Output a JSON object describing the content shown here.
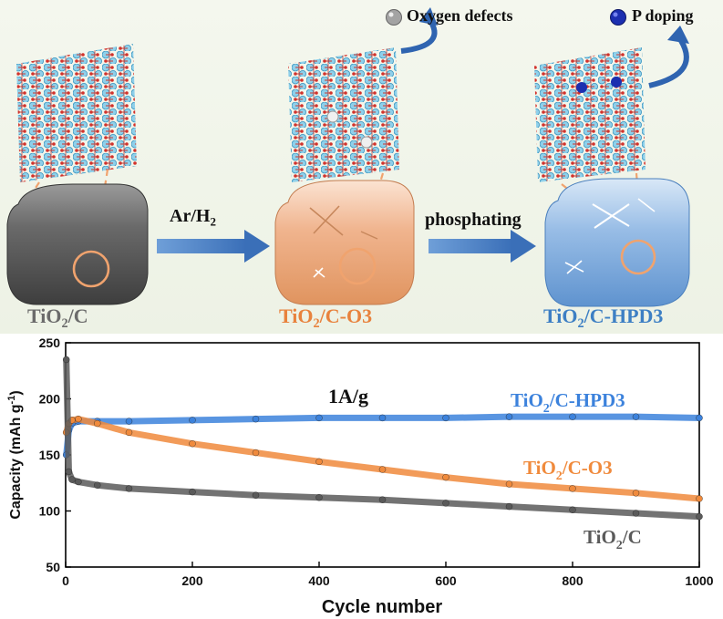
{
  "schematic": {
    "legend": [
      {
        "label": "Oxygen defects",
        "color": "#9a9a9a"
      },
      {
        "label": "P doping",
        "color": "#1c2fb0"
      }
    ],
    "materials": [
      {
        "name_main": "TiO",
        "name_sub": "2",
        "name_tail": "/C",
        "color": "#6b6b6b",
        "block_color": "#4a4a4a"
      },
      {
        "name_main": "TiO",
        "name_sub": "2",
        "name_tail": "/C-O3",
        "color": "#e8823d",
        "block_color": "#e9a27c"
      },
      {
        "name_main": "TiO",
        "name_sub": "2",
        "name_tail": "/C-HPD3",
        "color": "#3d7fc4",
        "block_color": "#6f9fd2"
      }
    ],
    "steps": [
      {
        "main": "Ar/H",
        "sub": "2"
      },
      {
        "main": "phosphating",
        "sub": ""
      }
    ]
  },
  "chart_data": {
    "type": "line",
    "xlabel": "Cycle number",
    "ylabel": "Capacity (mAh g",
    "ylabel_sup": "-1",
    "ylabel_tail": ")",
    "xlim": [
      0,
      1000
    ],
    "ylim": [
      50,
      250
    ],
    "xticks": [
      0,
      200,
      400,
      600,
      800,
      1000
    ],
    "yticks": [
      50,
      100,
      150,
      200,
      250
    ],
    "annotation": "1A/g",
    "series": [
      {
        "name": "TiO2/C-HPD3",
        "label_main": "TiO",
        "label_sub": "2",
        "label_tail": "/C-HPD3",
        "color": "#3c82dc",
        "x": [
          1,
          5,
          10,
          20,
          50,
          100,
          200,
          300,
          400,
          500,
          600,
          700,
          800,
          900,
          1000
        ],
        "y": [
          150,
          172,
          178,
          180,
          180,
          180,
          181,
          182,
          183,
          183,
          183,
          184,
          184,
          184,
          183
        ]
      },
      {
        "name": "TiO2/C-O3",
        "label_main": "TiO",
        "label_sub": "2",
        "label_tail": "/C-O3",
        "color": "#f08a3c",
        "x": [
          1,
          5,
          10,
          20,
          50,
          100,
          200,
          300,
          400,
          500,
          600,
          700,
          800,
          900,
          1000
        ],
        "y": [
          170,
          178,
          181,
          182,
          178,
          170,
          160,
          152,
          144,
          137,
          130,
          124,
          120,
          116,
          111
        ]
      },
      {
        "name": "TiO2/C",
        "label_main": "TiO",
        "label_sub": "2",
        "label_tail": "/C",
        "color": "#5a5a5a",
        "x": [
          1,
          5,
          10,
          20,
          50,
          100,
          200,
          300,
          400,
          500,
          600,
          700,
          800,
          900,
          1000
        ],
        "y": [
          235,
          135,
          128,
          126,
          123,
          120,
          117,
          114,
          112,
          110,
          107,
          104,
          101,
          98,
          95
        ]
      }
    ]
  }
}
